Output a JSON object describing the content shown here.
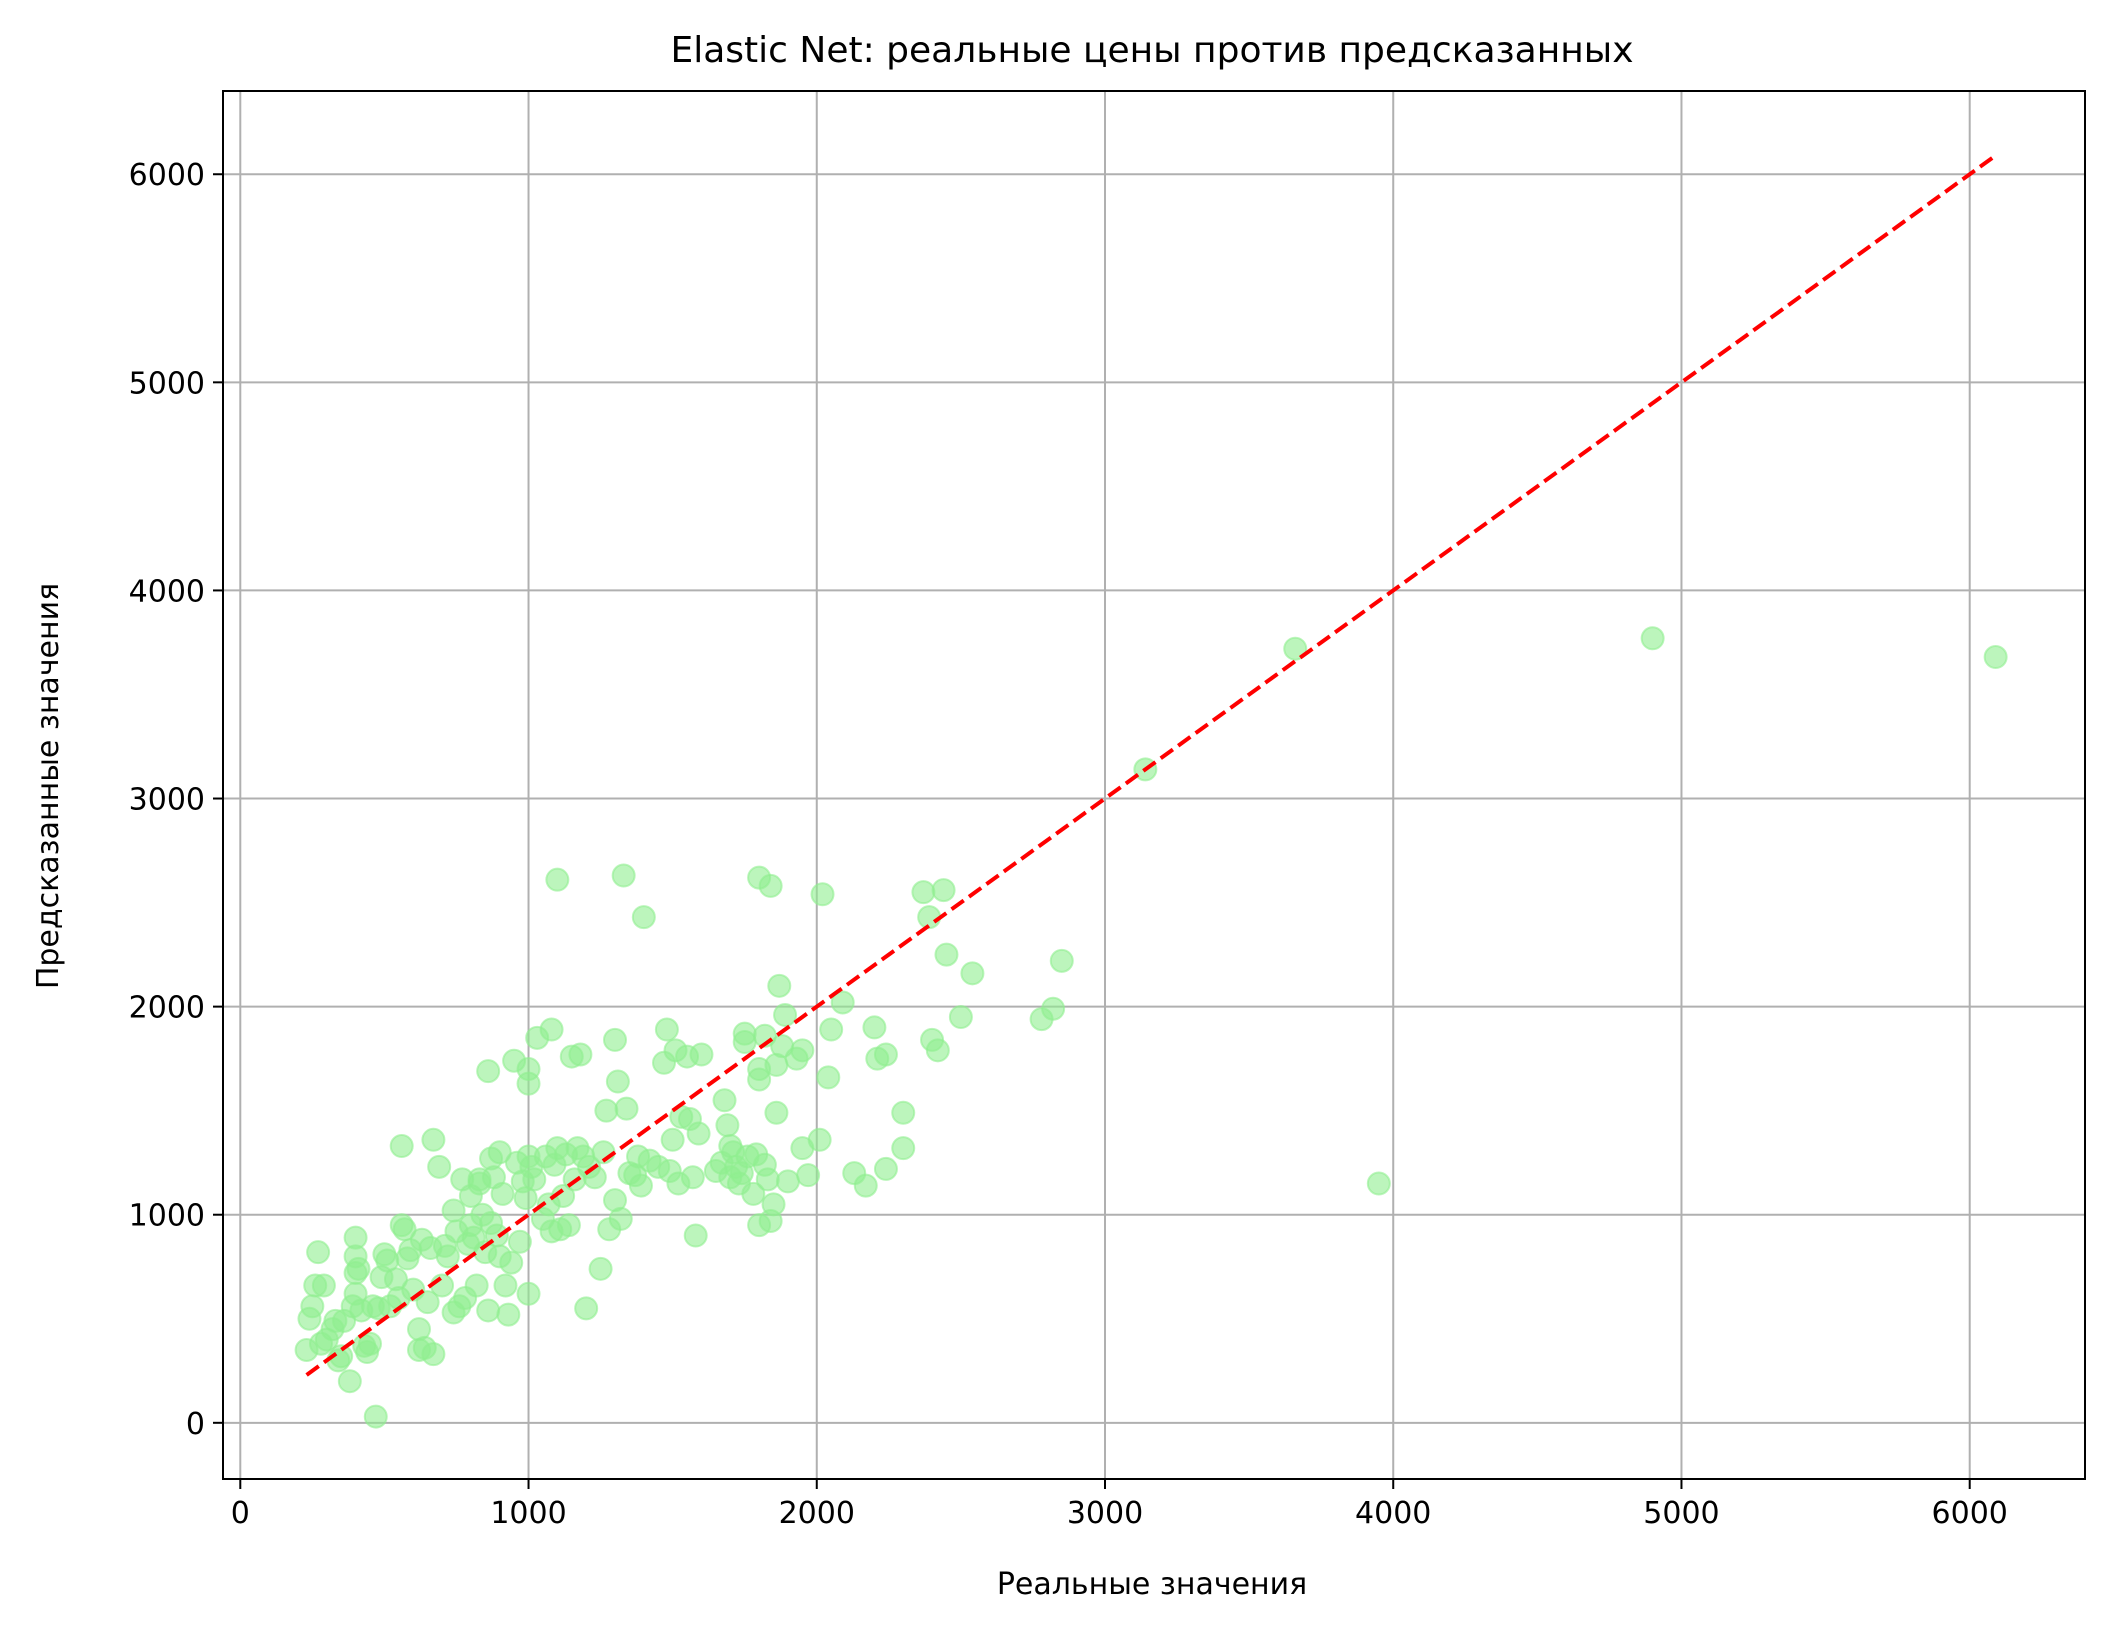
{
  "chart_data": {
    "type": "scatter",
    "title": "Elastic Net: реальные цены против предсказанных",
    "xlabel": "Реальные значения",
    "ylabel": "Предсказанные значения",
    "xlim": [
      -60,
      6400
    ],
    "ylim": [
      -270,
      6400
    ],
    "xticks": [
      0,
      1000,
      2000,
      3000,
      4000,
      5000,
      6000
    ],
    "yticks": [
      0,
      1000,
      2000,
      3000,
      4000,
      5000,
      6000
    ],
    "xtick_labels": [
      "0",
      "1000",
      "2000",
      "3000",
      "4000",
      "5000",
      "6000"
    ],
    "ytick_labels": [
      "0",
      "1000",
      "2000",
      "3000",
      "4000",
      "5000",
      "6000"
    ],
    "grid": true,
    "legend": "none",
    "colors": {
      "points": "#90ee90",
      "reference_line": "#ff0000",
      "grid": "#b0b0b0",
      "axes": "#000000"
    },
    "reference_line": {
      "style": "dashed",
      "x": [
        230,
        6090
      ],
      "y": [
        230,
        6090
      ]
    },
    "series": [
      {
        "points": [
          [
            230,
            350
          ],
          [
            240,
            500
          ],
          [
            250,
            560
          ],
          [
            260,
            660
          ],
          [
            270,
            820
          ],
          [
            280,
            380
          ],
          [
            290,
            660
          ],
          [
            300,
            400
          ],
          [
            320,
            450
          ],
          [
            330,
            490
          ],
          [
            340,
            300
          ],
          [
            350,
            320
          ],
          [
            360,
            490
          ],
          [
            380,
            200
          ],
          [
            390,
            560
          ],
          [
            400,
            620
          ],
          [
            400,
            720
          ],
          [
            400,
            800
          ],
          [
            400,
            890
          ],
          [
            410,
            740
          ],
          [
            420,
            540
          ],
          [
            430,
            370
          ],
          [
            440,
            340
          ],
          [
            450,
            380
          ],
          [
            460,
            560
          ],
          [
            470,
            30
          ],
          [
            480,
            550
          ],
          [
            490,
            700
          ],
          [
            500,
            810
          ],
          [
            510,
            780
          ],
          [
            520,
            560
          ],
          [
            540,
            690
          ],
          [
            550,
            600
          ],
          [
            560,
            1330
          ],
          [
            560,
            950
          ],
          [
            570,
            930
          ],
          [
            580,
            790
          ],
          [
            590,
            830
          ],
          [
            600,
            640
          ],
          [
            620,
            450
          ],
          [
            620,
            350
          ],
          [
            630,
            880
          ],
          [
            640,
            360
          ],
          [
            650,
            580
          ],
          [
            660,
            840
          ],
          [
            670,
            1360
          ],
          [
            670,
            330
          ],
          [
            690,
            1230
          ],
          [
            700,
            660
          ],
          [
            710,
            850
          ],
          [
            720,
            800
          ],
          [
            740,
            530
          ],
          [
            740,
            1020
          ],
          [
            750,
            920
          ],
          [
            760,
            560
          ],
          [
            770,
            1170
          ],
          [
            780,
            600
          ],
          [
            790,
            860
          ],
          [
            800,
            950
          ],
          [
            800,
            1090
          ],
          [
            810,
            890
          ],
          [
            820,
            660
          ],
          [
            830,
            1170
          ],
          [
            830,
            1150
          ],
          [
            840,
            1000
          ],
          [
            850,
            820
          ],
          [
            860,
            540
          ],
          [
            860,
            1690
          ],
          [
            870,
            1270
          ],
          [
            870,
            960
          ],
          [
            880,
            1180
          ],
          [
            890,
            900
          ],
          [
            900,
            800
          ],
          [
            900,
            1300
          ],
          [
            910,
            1100
          ],
          [
            920,
            660
          ],
          [
            930,
            520
          ],
          [
            940,
            770
          ],
          [
            950,
            1740
          ],
          [
            960,
            1250
          ],
          [
            970,
            870
          ],
          [
            980,
            1160
          ],
          [
            990,
            1080
          ],
          [
            1000,
            620
          ],
          [
            1000,
            1630
          ],
          [
            1000,
            1700
          ],
          [
            1000,
            1280
          ],
          [
            1010,
            1230
          ],
          [
            1020,
            1170
          ],
          [
            1030,
            1850
          ],
          [
            1050,
            980
          ],
          [
            1060,
            1280
          ],
          [
            1070,
            1050
          ],
          [
            1080,
            920
          ],
          [
            1080,
            1890
          ],
          [
            1090,
            1240
          ],
          [
            1100,
            2610
          ],
          [
            1100,
            1320
          ],
          [
            1110,
            930
          ],
          [
            1120,
            1090
          ],
          [
            1130,
            1290
          ],
          [
            1140,
            950
          ],
          [
            1150,
            1760
          ],
          [
            1160,
            1170
          ],
          [
            1170,
            1320
          ],
          [
            1180,
            1770
          ],
          [
            1190,
            1280
          ],
          [
            1200,
            550
          ],
          [
            1210,
            1230
          ],
          [
            1230,
            1180
          ],
          [
            1250,
            740
          ],
          [
            1260,
            1300
          ],
          [
            1270,
            1500
          ],
          [
            1280,
            930
          ],
          [
            1300,
            1070
          ],
          [
            1300,
            1840
          ],
          [
            1310,
            1640
          ],
          [
            1320,
            980
          ],
          [
            1330,
            2630
          ],
          [
            1340,
            1510
          ],
          [
            1350,
            1200
          ],
          [
            1370,
            1190
          ],
          [
            1380,
            1280
          ],
          [
            1390,
            1140
          ],
          [
            1400,
            2430
          ],
          [
            1420,
            1260
          ],
          [
            1450,
            1230
          ],
          [
            1470,
            1730
          ],
          [
            1480,
            1890
          ],
          [
            1490,
            1210
          ],
          [
            1500,
            1360
          ],
          [
            1510,
            1790
          ],
          [
            1520,
            1150
          ],
          [
            1530,
            1470
          ],
          [
            1550,
            1760
          ],
          [
            1560,
            1460
          ],
          [
            1570,
            1180
          ],
          [
            1580,
            900
          ],
          [
            1590,
            1390
          ],
          [
            1600,
            1770
          ],
          [
            1650,
            1210
          ],
          [
            1670,
            1250
          ],
          [
            1680,
            1550
          ],
          [
            1690,
            1430
          ],
          [
            1700,
            1330
          ],
          [
            1700,
            1180
          ],
          [
            1710,
            1300
          ],
          [
            1720,
            1230
          ],
          [
            1730,
            1150
          ],
          [
            1740,
            1200
          ],
          [
            1750,
            1830
          ],
          [
            1750,
            1870
          ],
          [
            1760,
            1280
          ],
          [
            1780,
            1100
          ],
          [
            1790,
            1290
          ],
          [
            1800,
            2620
          ],
          [
            1800,
            1650
          ],
          [
            1800,
            1700
          ],
          [
            1800,
            950
          ],
          [
            1820,
            1860
          ],
          [
            1820,
            1240
          ],
          [
            1830,
            1170
          ],
          [
            1840,
            2580
          ],
          [
            1840,
            970
          ],
          [
            1850,
            1050
          ],
          [
            1860,
            1720
          ],
          [
            1860,
            1490
          ],
          [
            1870,
            2100
          ],
          [
            1880,
            1810
          ],
          [
            1890,
            1960
          ],
          [
            1900,
            1160
          ],
          [
            1930,
            1750
          ],
          [
            1950,
            1320
          ],
          [
            1950,
            1790
          ],
          [
            1970,
            1190
          ],
          [
            2010,
            1360
          ],
          [
            2020,
            2540
          ],
          [
            2040,
            1660
          ],
          [
            2050,
            1890
          ],
          [
            2090,
            2020
          ],
          [
            2130,
            1200
          ],
          [
            2170,
            1140
          ],
          [
            2200,
            1900
          ],
          [
            2210,
            1750
          ],
          [
            2240,
            1770
          ],
          [
            2240,
            1220
          ],
          [
            2300,
            1320
          ],
          [
            2300,
            1490
          ],
          [
            2370,
            2550
          ],
          [
            2390,
            2430
          ],
          [
            2400,
            1840
          ],
          [
            2420,
            1790
          ],
          [
            2440,
            2560
          ],
          [
            2450,
            2250
          ],
          [
            2500,
            1950
          ],
          [
            2540,
            2160
          ],
          [
            2780,
            1940
          ],
          [
            2820,
            1990
          ],
          [
            2850,
            2220
          ],
          [
            3140,
            3140
          ],
          [
            3660,
            3720
          ],
          [
            3950,
            1150
          ],
          [
            4900,
            3770
          ],
          [
            6090,
            3680
          ]
        ]
      }
    ]
  }
}
